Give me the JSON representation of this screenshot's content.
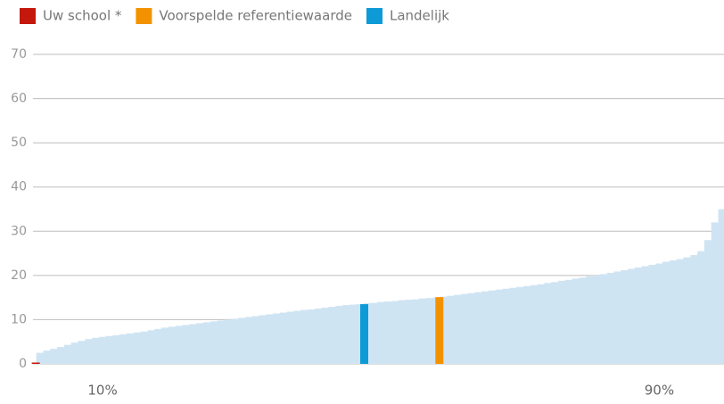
{
  "chart_data": {
    "type": "bar",
    "x": [
      1,
      2,
      3,
      4,
      5,
      6,
      7,
      8,
      9,
      10,
      11,
      12,
      13,
      14,
      15,
      16,
      17,
      18,
      19,
      20,
      21,
      22,
      23,
      24,
      25,
      26,
      27,
      28,
      29,
      30,
      31,
      32,
      33,
      34,
      35,
      36,
      37,
      38,
      39,
      40,
      41,
      42,
      43,
      44,
      45,
      46,
      47,
      48,
      49,
      50,
      51,
      52,
      53,
      54,
      55,
      56,
      57,
      58,
      59,
      60,
      61,
      62,
      63,
      64,
      65,
      66,
      67,
      68,
      69,
      70,
      71,
      72,
      73,
      74,
      75,
      76,
      77,
      78,
      79,
      80,
      81,
      82,
      83,
      84,
      85,
      86,
      87,
      88,
      89,
      90,
      91,
      92,
      93,
      94,
      95,
      96,
      97,
      98,
      99
    ],
    "values": [
      2.5,
      3.0,
      3.4,
      3.8,
      4.3,
      4.8,
      5.2,
      5.6,
      5.9,
      6.1,
      6.3,
      6.5,
      6.7,
      6.9,
      7.1,
      7.3,
      7.6,
      7.9,
      8.2,
      8.4,
      8.6,
      8.8,
      9.0,
      9.2,
      9.4,
      9.6,
      9.8,
      10.0,
      10.2,
      10.4,
      10.6,
      10.8,
      11.0,
      11.2,
      11.4,
      11.6,
      11.8,
      12.0,
      12.2,
      12.3,
      12.5,
      12.7,
      12.9,
      13.1,
      13.3,
      13.4,
      13.5,
      13.7,
      13.8,
      14.0,
      14.1,
      14.2,
      14.4,
      14.5,
      14.6,
      14.8,
      14.9,
      15.0,
      15.2,
      15.4,
      15.6,
      15.8,
      16.0,
      16.2,
      16.4,
      16.6,
      16.8,
      17.0,
      17.2,
      17.4,
      17.6,
      17.8,
      18.0,
      18.3,
      18.5,
      18.8,
      19.0,
      19.3,
      19.5,
      19.8,
      20.0,
      20.3,
      20.6,
      20.9,
      21.2,
      21.5,
      21.8,
      22.1,
      22.4,
      22.7,
      23.1,
      23.4,
      23.7,
      24.1,
      24.6,
      25.5,
      28,
      32,
      35
    ],
    "color": "#cfe4f3",
    "series": [
      {
        "name": "Uw school *",
        "color": "#c4180c",
        "x": [
          0.4
        ],
        "values": [
          0
        ]
      },
      {
        "name": "Voorspelde referentiewaarde",
        "color": "#f39200",
        "x": [
          58.4
        ],
        "values": [
          15.1
        ]
      },
      {
        "name": "Landelijk",
        "color": "#0e9ad7",
        "x": [
          47.6
        ],
        "values": [
          13.5
        ]
      }
    ],
    "xlim": [
      0,
      99.3
    ],
    "xticks": [
      {
        "value": 10,
        "label": "10%"
      },
      {
        "value": 90,
        "label": "90%"
      }
    ],
    "ylim": [
      0,
      70
    ],
    "yticks": [
      0,
      10,
      20,
      30,
      40,
      50,
      60,
      70
    ],
    "grid": true,
    "legend": "top-left"
  }
}
